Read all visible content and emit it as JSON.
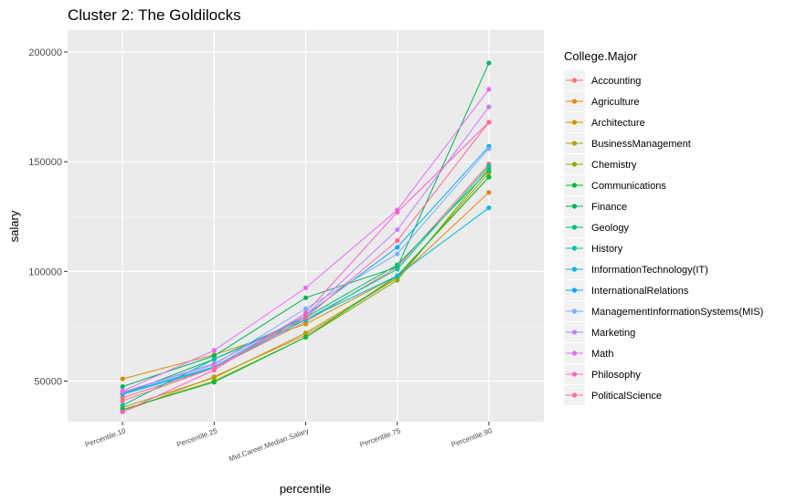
{
  "chart_data": {
    "type": "line",
    "title": "Cluster 2: The Goldilocks",
    "xlabel": "percentile",
    "ylabel": "salary",
    "categories": [
      "Percentile.10",
      "Percentile.25",
      "Mid.Career.Median.Salary",
      "Percentile.75",
      "Percentile.90"
    ],
    "y_ticks": [
      50000,
      100000,
      150000,
      200000
    ],
    "y_tick_labels": [
      "50000",
      "100000",
      "150000",
      "200000"
    ],
    "ylim": [
      31500,
      210000
    ],
    "grid": true,
    "legend_position": "right",
    "legend_title": "College.Major",
    "series": [
      {
        "name": "Accounting",
        "color": "#F8766D",
        "values": [
          42500,
          56000,
          77000,
          102000,
          149000
        ]
      },
      {
        "name": "Agriculture",
        "color": "#E7861B",
        "values": [
          36000,
          52000,
          71000,
          97000,
          136000
        ]
      },
      {
        "name": "Architecture",
        "color": "#CE9300",
        "values": [
          51000,
          62000,
          76000,
          98000,
          143000
        ]
      },
      {
        "name": "BusinessManagement",
        "color": "#AFA100",
        "values": [
          38000,
          51500,
          72000,
          97000,
          145000
        ]
      },
      {
        "name": "Chemistry",
        "color": "#85AD00",
        "values": [
          37000,
          50000,
          70000,
          96000,
          147000
        ]
      },
      {
        "name": "Communications",
        "color": "#00BA38",
        "values": [
          37000,
          49500,
          70000,
          98000,
          143000
        ]
      },
      {
        "name": "Finance",
        "color": "#00B35A",
        "values": [
          47500,
          61500,
          88000,
          102000,
          195000
        ]
      },
      {
        "name": "Geology",
        "color": "#00BE70",
        "values": [
          44000,
          60000,
          79000,
          103000,
          146000
        ]
      },
      {
        "name": "History",
        "color": "#00C1A3",
        "values": [
          39000,
          60000,
          78000,
          101000,
          148000
        ]
      },
      {
        "name": "InformationTechnology(IT)",
        "color": "#00BAE0",
        "values": [
          44000,
          56000,
          78000,
          98000,
          129000
        ]
      },
      {
        "name": "InternationalRelations",
        "color": "#00A9FF",
        "values": [
          44500,
          56500,
          80000,
          111000,
          157000
        ]
      },
      {
        "name": "ManagementInformationSystems(MIS)",
        "color": "#7CAEFF",
        "values": [
          45000,
          57500,
          83000,
          108000,
          156000
        ]
      },
      {
        "name": "Marketing",
        "color": "#C77CFF",
        "values": [
          45000,
          58000,
          80000,
          119000,
          175000
        ]
      },
      {
        "name": "Math",
        "color": "#E76BF3",
        "values": [
          45500,
          64000,
          92500,
          128000,
          183000
        ]
      },
      {
        "name": "Philosophy",
        "color": "#FF61C9",
        "values": [
          36000,
          55000,
          81000,
          127000,
          168000
        ]
      },
      {
        "name": "PoliticalScience",
        "color": "#FF6C91",
        "values": [
          41000,
          56000,
          79000,
          114000,
          168000
        ]
      }
    ]
  }
}
